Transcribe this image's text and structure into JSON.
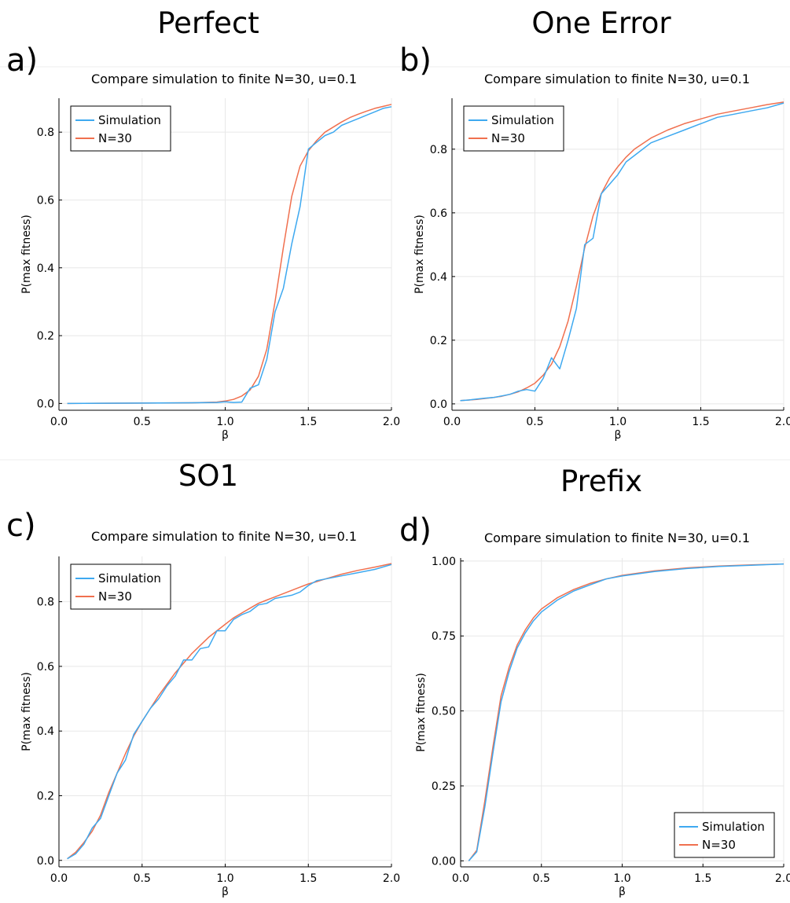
{
  "colors": {
    "simulation": "#3ea9f0",
    "model": "#f0704f"
  },
  "chart_data": [
    {
      "type": "line",
      "panel_title": "Perfect",
      "panel_letter": "a)",
      "title": "Compare simulation to finite N=30, u=0.1",
      "xlabel": "β",
      "ylabel": "P(max fitness)",
      "xlim": [
        0.0,
        2.0
      ],
      "ylim": [
        -0.02,
        0.9
      ],
      "xticks": [
        0.0,
        0.5,
        1.0,
        1.5,
        2.0
      ],
      "xtick_labels": [
        "0.0",
        "0.5",
        "1.0",
        "1.5",
        "2.0"
      ],
      "yticks": [
        0.0,
        0.2,
        0.4,
        0.6,
        0.8
      ],
      "ytick_labels": [
        "0.0",
        "0.2",
        "0.4",
        "0.6",
        "0.8"
      ],
      "legend_position": "top-left",
      "series": [
        {
          "name": "Simulation",
          "color_key": "simulation",
          "x": [
            0.05,
            0.5,
            0.8,
            0.95,
            1.0,
            1.05,
            1.1,
            1.15,
            1.2,
            1.25,
            1.3,
            1.35,
            1.4,
            1.45,
            1.5,
            1.55,
            1.6,
            1.65,
            1.7,
            1.75,
            1.8,
            1.85,
            1.9,
            1.95,
            2.0
          ],
          "y": [
            0.0,
            0.001,
            0.002,
            0.003,
            0.005,
            0.003,
            0.004,
            0.045,
            0.055,
            0.13,
            0.27,
            0.34,
            0.47,
            0.58,
            0.75,
            0.77,
            0.79,
            0.8,
            0.82,
            0.83,
            0.84,
            0.85,
            0.86,
            0.87,
            0.875
          ]
        },
        {
          "name": "N=30",
          "color_key": "model",
          "x": [
            0.05,
            0.5,
            0.8,
            0.95,
            1.0,
            1.05,
            1.1,
            1.15,
            1.2,
            1.25,
            1.3,
            1.35,
            1.4,
            1.45,
            1.5,
            1.55,
            1.6,
            1.65,
            1.7,
            1.75,
            1.8,
            1.85,
            1.9,
            1.95,
            2.0
          ],
          "y": [
            0.0,
            0.001,
            0.002,
            0.004,
            0.007,
            0.012,
            0.022,
            0.04,
            0.08,
            0.16,
            0.3,
            0.46,
            0.61,
            0.7,
            0.745,
            0.775,
            0.8,
            0.815,
            0.83,
            0.843,
            0.853,
            0.862,
            0.87,
            0.876,
            0.882
          ]
        }
      ]
    },
    {
      "type": "line",
      "panel_title": "One Error",
      "panel_letter": "b)",
      "title": "Compare simulation to finite N=30, u=0.1",
      "xlabel": "β",
      "ylabel": "P(max fitness)",
      "xlim": [
        0.0,
        2.0
      ],
      "ylim": [
        -0.02,
        0.96
      ],
      "xticks": [
        0.0,
        0.5,
        1.0,
        1.5,
        2.0
      ],
      "xtick_labels": [
        "0.0",
        "0.5",
        "1.0",
        "1.5",
        "2.0"
      ],
      "yticks": [
        0.0,
        0.2,
        0.4,
        0.6,
        0.8
      ],
      "ytick_labels": [
        "0.0",
        "0.2",
        "0.4",
        "0.6",
        "0.8"
      ],
      "legend_position": "top-left",
      "series": [
        {
          "name": "Simulation",
          "color_key": "simulation",
          "x": [
            0.05,
            0.1,
            0.15,
            0.2,
            0.25,
            0.3,
            0.35,
            0.4,
            0.45,
            0.5,
            0.55,
            0.6,
            0.65,
            0.7,
            0.75,
            0.8,
            0.85,
            0.9,
            0.95,
            1.0,
            1.05,
            1.1,
            1.2,
            1.3,
            1.4,
            1.5,
            1.6,
            1.7,
            1.8,
            1.9,
            2.0
          ],
          "y": [
            0.01,
            0.012,
            0.015,
            0.018,
            0.02,
            0.025,
            0.03,
            0.04,
            0.045,
            0.04,
            0.08,
            0.145,
            0.11,
            0.2,
            0.3,
            0.5,
            0.52,
            0.66,
            0.69,
            0.72,
            0.76,
            0.78,
            0.82,
            0.84,
            0.86,
            0.88,
            0.9,
            0.91,
            0.92,
            0.93,
            0.945
          ]
        },
        {
          "name": "N=30",
          "color_key": "model",
          "x": [
            0.05,
            0.1,
            0.15,
            0.2,
            0.25,
            0.3,
            0.35,
            0.4,
            0.45,
            0.5,
            0.55,
            0.6,
            0.65,
            0.7,
            0.75,
            0.8,
            0.85,
            0.9,
            0.95,
            1.0,
            1.05,
            1.1,
            1.2,
            1.3,
            1.4,
            1.5,
            1.6,
            1.7,
            1.8,
            1.9,
            2.0
          ],
          "y": [
            0.01,
            0.012,
            0.014,
            0.017,
            0.02,
            0.024,
            0.03,
            0.038,
            0.05,
            0.065,
            0.09,
            0.125,
            0.18,
            0.26,
            0.37,
            0.49,
            0.59,
            0.66,
            0.71,
            0.745,
            0.775,
            0.8,
            0.835,
            0.86,
            0.88,
            0.895,
            0.91,
            0.92,
            0.93,
            0.94,
            0.948
          ]
        }
      ]
    },
    {
      "type": "line",
      "panel_title": "SO1",
      "panel_letter": "c)",
      "title": "Compare simulation to finite N=30, u=0.1",
      "xlabel": "β",
      "ylabel": "P(max fitness)",
      "xlim": [
        0.0,
        2.0
      ],
      "ylim": [
        -0.02,
        0.94
      ],
      "xticks": [
        0.0,
        0.5,
        1.0,
        1.5,
        2.0
      ],
      "xtick_labels": [
        "0.0",
        "0.5",
        "1.0",
        "1.5",
        "2.0"
      ],
      "yticks": [
        0.0,
        0.2,
        0.4,
        0.6,
        0.8
      ],
      "ytick_labels": [
        "0.0",
        "0.2",
        "0.4",
        "0.6",
        "0.8"
      ],
      "legend_position": "top-left",
      "series": [
        {
          "name": "Simulation",
          "color_key": "simulation",
          "x": [
            0.05,
            0.1,
            0.15,
            0.2,
            0.25,
            0.3,
            0.35,
            0.4,
            0.45,
            0.5,
            0.55,
            0.6,
            0.65,
            0.7,
            0.75,
            0.8,
            0.85,
            0.9,
            0.95,
            1.0,
            1.05,
            1.1,
            1.15,
            1.2,
            1.25,
            1.3,
            1.35,
            1.4,
            1.45,
            1.5,
            1.55,
            1.6,
            1.7,
            1.8,
            1.9,
            2.0
          ],
          "y": [
            0.005,
            0.02,
            0.05,
            0.1,
            0.13,
            0.2,
            0.27,
            0.31,
            0.39,
            0.43,
            0.47,
            0.5,
            0.54,
            0.57,
            0.62,
            0.62,
            0.655,
            0.66,
            0.71,
            0.71,
            0.745,
            0.76,
            0.77,
            0.79,
            0.795,
            0.81,
            0.815,
            0.82,
            0.83,
            0.85,
            0.865,
            0.87,
            0.88,
            0.89,
            0.9,
            0.915
          ]
        },
        {
          "name": "N=30",
          "color_key": "model",
          "x": [
            0.05,
            0.1,
            0.15,
            0.2,
            0.25,
            0.3,
            0.35,
            0.4,
            0.45,
            0.5,
            0.55,
            0.6,
            0.65,
            0.7,
            0.75,
            0.8,
            0.85,
            0.9,
            0.95,
            1.0,
            1.05,
            1.1,
            1.15,
            1.2,
            1.25,
            1.3,
            1.35,
            1.4,
            1.45,
            1.5,
            1.55,
            1.6,
            1.7,
            1.8,
            1.9,
            2.0
          ],
          "y": [
            0.005,
            0.025,
            0.055,
            0.09,
            0.14,
            0.21,
            0.27,
            0.33,
            0.385,
            0.43,
            0.47,
            0.51,
            0.545,
            0.58,
            0.61,
            0.64,
            0.665,
            0.69,
            0.71,
            0.73,
            0.75,
            0.765,
            0.78,
            0.795,
            0.805,
            0.815,
            0.825,
            0.835,
            0.845,
            0.855,
            0.862,
            0.87,
            0.885,
            0.897,
            0.907,
            0.918
          ]
        }
      ]
    },
    {
      "type": "line",
      "panel_title": "Prefix",
      "panel_letter": "d)",
      "title": "Compare simulation to finite N=30, u=0.1",
      "xlabel": "β",
      "ylabel": "P(max fitness)",
      "xlim": [
        0.0,
        2.0
      ],
      "ylim": [
        -0.02,
        1.01
      ],
      "xticks": [
        0.0,
        0.5,
        1.0,
        1.5,
        2.0
      ],
      "xtick_labels": [
        "0.0",
        "0.5",
        "1.0",
        "1.5",
        "2.0"
      ],
      "yticks": [
        0.0,
        0.25,
        0.5,
        0.75,
        1.0
      ],
      "ytick_labels": [
        "0.00",
        "0.25",
        "0.50",
        "0.75",
        "1.00"
      ],
      "legend_position": "bottom-right",
      "series": [
        {
          "name": "Simulation",
          "color_key": "simulation",
          "x": [
            0.05,
            0.1,
            0.15,
            0.2,
            0.25,
            0.3,
            0.35,
            0.4,
            0.45,
            0.5,
            0.6,
            0.7,
            0.8,
            0.9,
            1.0,
            1.2,
            1.4,
            1.6,
            1.8,
            2.0
          ],
          "y": [
            0.0,
            0.03,
            0.18,
            0.36,
            0.53,
            0.63,
            0.71,
            0.76,
            0.8,
            0.83,
            0.87,
            0.9,
            0.92,
            0.94,
            0.95,
            0.965,
            0.975,
            0.982,
            0.986,
            0.99
          ]
        },
        {
          "name": "N=30",
          "color_key": "model",
          "x": [
            0.05,
            0.1,
            0.15,
            0.2,
            0.25,
            0.3,
            0.35,
            0.4,
            0.45,
            0.5,
            0.6,
            0.7,
            0.8,
            0.9,
            1.0,
            1.2,
            1.4,
            1.6,
            1.8,
            2.0
          ],
          "y": [
            0.0,
            0.035,
            0.2,
            0.38,
            0.55,
            0.645,
            0.72,
            0.77,
            0.81,
            0.84,
            0.878,
            0.905,
            0.925,
            0.94,
            0.952,
            0.967,
            0.977,
            0.983,
            0.987,
            0.99
          ]
        }
      ]
    }
  ]
}
